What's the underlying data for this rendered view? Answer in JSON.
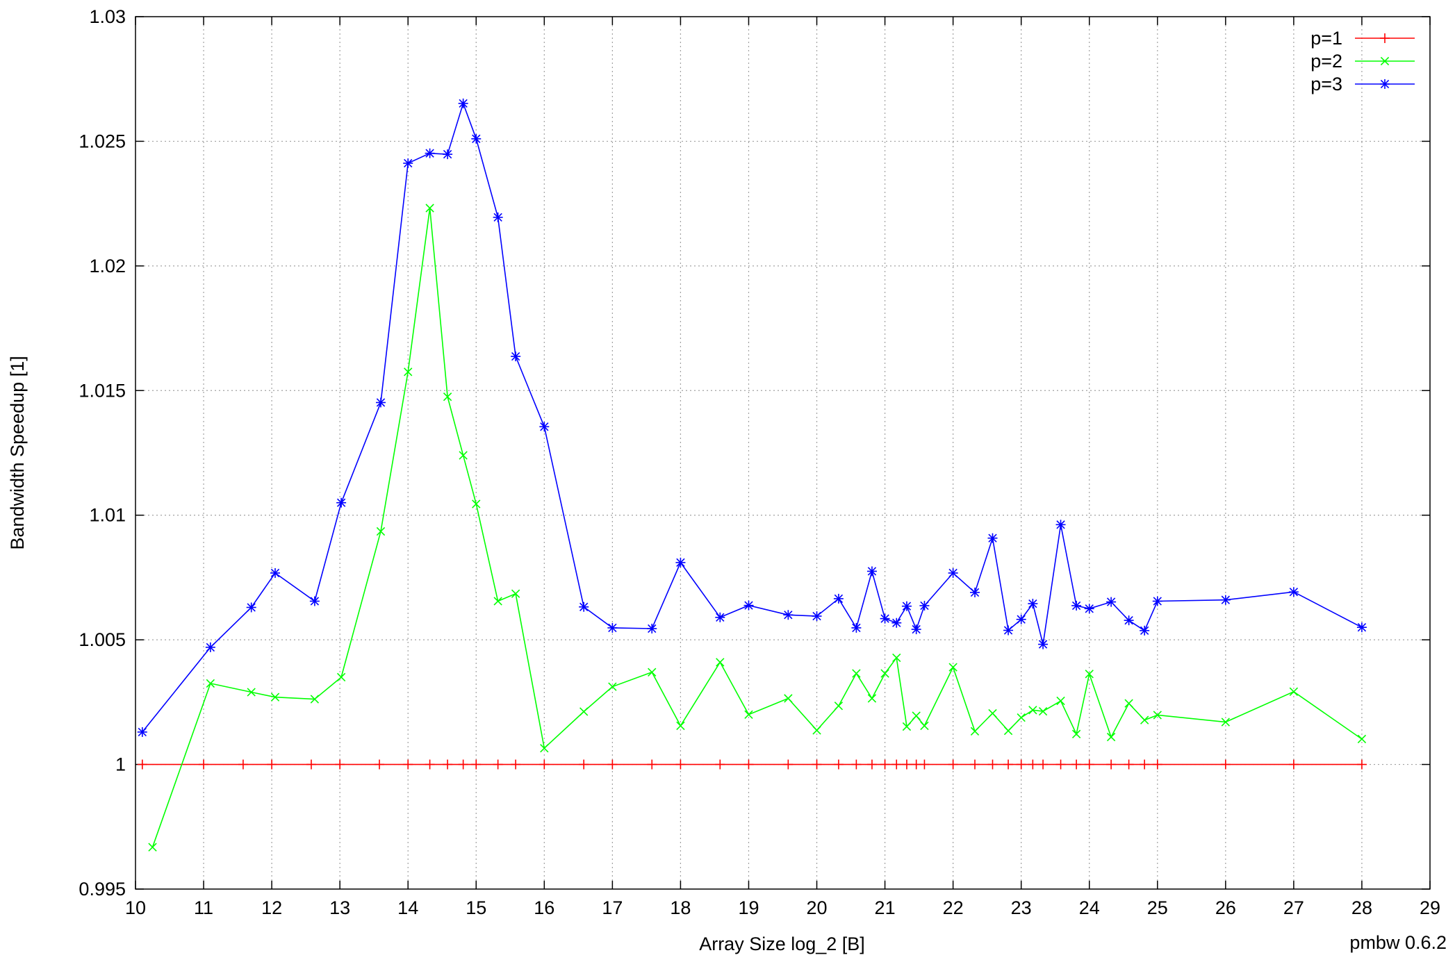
{
  "chart_data": {
    "type": "line",
    "title": "",
    "xlabel": "Array Size log_2 [B]",
    "ylabel": "Bandwidth Speedup [1]",
    "footer_text": "pmbw 0.6.2",
    "xlim": [
      10,
      29
    ],
    "ylim": [
      0.995,
      1.03
    ],
    "x_ticks": [
      "10",
      "11",
      "12",
      "13",
      "14",
      "15",
      "16",
      "17",
      "18",
      "19",
      "20",
      "21",
      "22",
      "23",
      "24",
      "25",
      "26",
      "27",
      "28",
      "29"
    ],
    "y_ticks": [
      "0.995",
      "1",
      "1.005",
      "1.01",
      "1.015",
      "1.02",
      "1.025",
      "1.03"
    ],
    "grid": true,
    "legend_position": "top-right",
    "series": [
      {
        "name": "p=1",
        "color": "#ff0000",
        "marker": "plus",
        "x": [
          10.1,
          11,
          11.58,
          12,
          12.58,
          13,
          13.58,
          14,
          14.32,
          14.58,
          14.81,
          15,
          15.32,
          15.58,
          16,
          16.58,
          17,
          17.58,
          18,
          18.58,
          19,
          19.58,
          20,
          20.32,
          20.58,
          20.81,
          21,
          21.17,
          21.32,
          21.46,
          21.58,
          22,
          22.32,
          22.58,
          22.81,
          23,
          23.17,
          23.32,
          23.58,
          23.81,
          24,
          24.32,
          24.58,
          24.81,
          25,
          26,
          27,
          28
        ],
        "values": [
          1,
          1,
          1,
          1,
          1,
          1,
          1,
          1,
          1,
          1,
          1,
          1,
          1,
          1,
          1,
          1,
          1,
          1,
          1,
          1,
          1,
          1,
          1,
          1,
          1,
          1,
          1,
          1,
          1,
          1,
          1,
          1,
          1,
          1,
          1,
          1,
          1,
          1,
          1,
          1,
          1,
          1,
          1,
          1,
          1,
          1,
          1,
          1
        ]
      },
      {
        "name": "p=2",
        "color": "#00ff00",
        "marker": "cross",
        "x": [
          10.25,
          11.1,
          11.7,
          12.05,
          12.63,
          13.02,
          13.6,
          14,
          14.32,
          14.58,
          14.81,
          15,
          15.32,
          15.58,
          16,
          16.58,
          17,
          17.58,
          18,
          18.58,
          19,
          19.58,
          20,
          20.32,
          20.58,
          20.81,
          21,
          21.17,
          21.32,
          21.46,
          21.58,
          22,
          22.32,
          22.58,
          22.81,
          23,
          23.17,
          23.32,
          23.58,
          23.81,
          24,
          24.32,
          24.58,
          24.81,
          25,
          26,
          27,
          28
        ],
        "values": [
          0.99668,
          1.00325,
          1.0029,
          1.0027,
          1.00262,
          1.0035,
          1.00935,
          1.01575,
          1.02232,
          1.01475,
          1.0124,
          1.01045,
          1.00655,
          1.00685,
          1.00065,
          1.00212,
          1.00312,
          1.0037,
          1.00155,
          1.0041,
          1.002,
          1.00265,
          1.00137,
          1.00235,
          1.00365,
          1.00265,
          1.00365,
          1.00428,
          1.00152,
          1.00195,
          1.00155,
          1.0039,
          1.00133,
          1.00205,
          1.00135,
          1.00188,
          1.00218,
          1.00213,
          1.00255,
          1.00122,
          1.00363,
          1.0011,
          1.00245,
          1.00178,
          1.00198,
          1.0017,
          1.00292,
          1.00102
        ]
      },
      {
        "name": "p=3",
        "color": "#0000ff",
        "marker": "star",
        "x": [
          10.1,
          11.1,
          11.7,
          12.05,
          12.63,
          13.02,
          13.6,
          14,
          14.32,
          14.58,
          14.81,
          15,
          15.32,
          15.58,
          16,
          16.58,
          17,
          17.58,
          18,
          18.58,
          19,
          19.58,
          20,
          20.32,
          20.58,
          20.81,
          21,
          21.17,
          21.32,
          21.46,
          21.58,
          22,
          22.32,
          22.58,
          22.81,
          23,
          23.17,
          23.32,
          23.58,
          23.81,
          24,
          24.32,
          24.58,
          24.81,
          25,
          26,
          27,
          28
        ],
        "values": [
          1.0013,
          1.0047,
          1.0063,
          1.00768,
          1.00655,
          1.0105,
          1.01452,
          1.02412,
          1.02452,
          1.02448,
          1.02652,
          1.0251,
          1.02195,
          1.01637,
          1.01355,
          1.00632,
          1.00548,
          1.00545,
          1.0081,
          1.0059,
          1.00638,
          1.006,
          1.00595,
          1.00665,
          1.00548,
          1.00775,
          1.00585,
          1.00568,
          1.00635,
          1.00542,
          1.00637,
          1.00768,
          1.0069,
          1.00908,
          1.00538,
          1.00582,
          1.00645,
          1.00482,
          1.00962,
          1.00637,
          1.00625,
          1.00652,
          1.00578,
          1.00537,
          1.00655,
          1.0066,
          1.00692,
          1.0055
        ]
      }
    ]
  }
}
